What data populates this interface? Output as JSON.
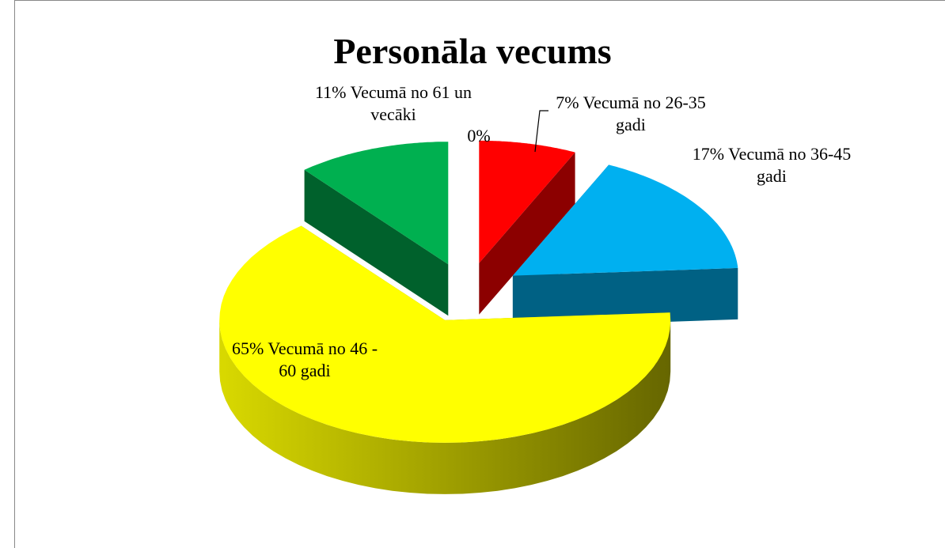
{
  "chart_data": {
    "type": "pie",
    "title": "Personāla vecums",
    "categories": [
      null,
      "Vecumā no 26-35 gadi",
      "Vecumā no 36-45 gadi",
      "Vecumā no 46 - 60 gadi",
      "Vecumā no 61 un vecāki"
    ],
    "values": [
      0,
      7,
      17,
      65,
      11
    ],
    "value_labels": [
      "0%",
      "7%",
      "17%",
      "65%",
      "11%"
    ],
    "colors": [
      "#4f81bd",
      "#ff0000",
      "#00b0f0",
      "#ffff00",
      "#00b050"
    ]
  }
}
